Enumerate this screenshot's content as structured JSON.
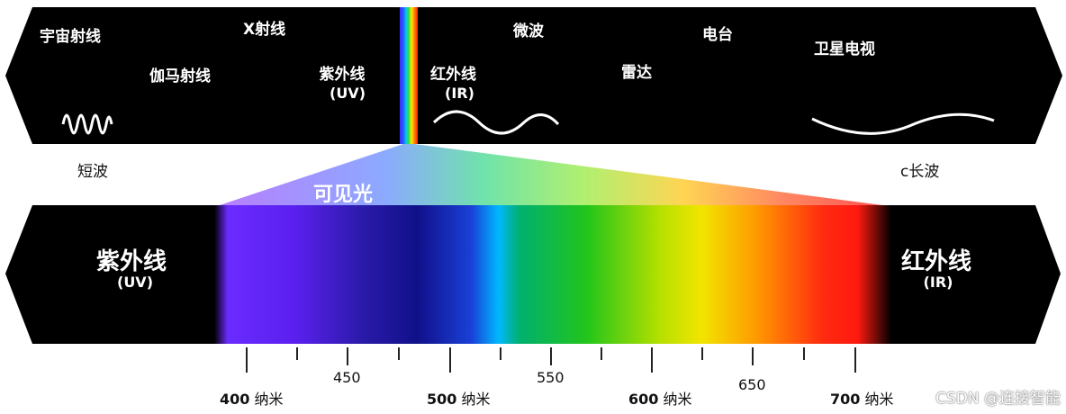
{
  "top_band": {
    "labels": {
      "gamma": "宇宙射线",
      "xray": "X射线",
      "gamma_ray": "伽马射线",
      "uv": "紫外线",
      "uv_abbr": "(UV)",
      "ir": "红外线",
      "ir_abbr": "(IR)",
      "microwave": "微波",
      "radar": "雷达",
      "radio": "电台",
      "satellite_tv": "卫星电视"
    }
  },
  "wave_ends": {
    "short": "短波",
    "long": "c长波"
  },
  "visible_light_label": "可见光",
  "bottom_band": {
    "left_label": "紫外线",
    "left_abbr": "(UV)",
    "right_label": "红外线",
    "right_abbr": "(IR)"
  },
  "axis": {
    "unit": "纳米",
    "major_ticks": [
      {
        "value": "400"
      },
      {
        "value": "500"
      },
      {
        "value": "600"
      },
      {
        "value": "700"
      }
    ],
    "minor_labels": [
      "450",
      "550",
      "650"
    ]
  },
  "colors": {
    "band_background": "#000000",
    "violet": "#8a2be2",
    "blue": "#1a1aa8",
    "cyan": "#00b0ff",
    "green": "#22c51a",
    "yellow": "#f2e500",
    "orange": "#ff8a00",
    "red": "#ff1a10"
  },
  "watermark": "CSDN @连接智能"
}
